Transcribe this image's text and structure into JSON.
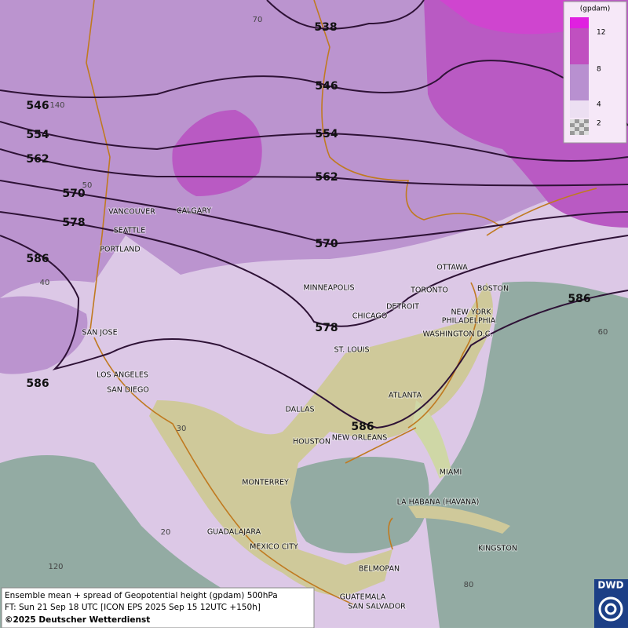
{
  "map": {
    "contour_labels": [
      538,
      546,
      546,
      554,
      554,
      562,
      562,
      570,
      570,
      578,
      578,
      586,
      586,
      586,
      586
    ],
    "cities": [
      "VANCOUVER",
      "CALGARY",
      "SEATTLE",
      "PORTLAND",
      "MINNEAPOLIS",
      "OTTAWA",
      "TORONTO",
      "BOSTON",
      "DETROIT",
      "CHICAGO",
      "NEW YORK",
      "PHILADELPHIA",
      "WASHINGTON D.C.",
      "SAN JOSE",
      "ST. LOUIS",
      "LOS ANGELES",
      "SAN DIEGO",
      "ATLANTA",
      "DALLAS",
      "HOUSTON",
      "NEW ORLEANS",
      "MIAMI",
      "MONTERREY",
      "LA HABANA (HAVANA)",
      "GUADALAJARA",
      "MEXICO CITY",
      "KINGSTON",
      "BELMOPAN",
      "GUATEMALA",
      "SAN SALVADOR"
    ],
    "graticule_labels": [
      70,
      140,
      50,
      40,
      30,
      20,
      120,
      60,
      80
    ],
    "legend": {
      "unit": "(gpdam)",
      "ticks": [
        12,
        8,
        4,
        2
      ]
    },
    "caption": {
      "line1": "Ensemble mean + spread of Geopotential height (gpdam) 500hPa",
      "line2": "FT: Sun 21 Sep 18 UTC [ICON EPS 2025 Sep 15 12UTC +150h]",
      "copyright": "©2025 Deutscher Wetterdienst"
    },
    "logo": "DWD"
  }
}
